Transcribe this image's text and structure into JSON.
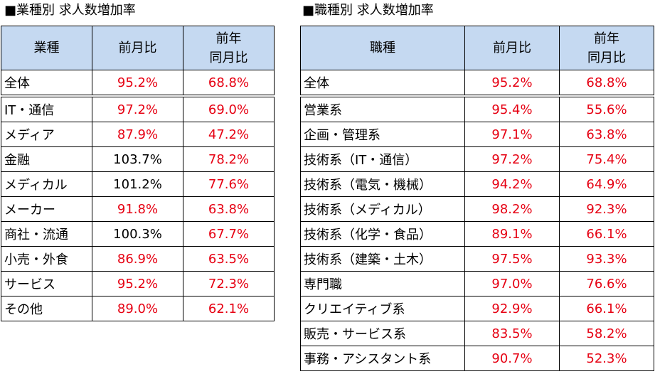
{
  "industry": {
    "title": "■業種別 求人数増加率",
    "headers": [
      "業種",
      "前月比",
      "前年\n同月比"
    ],
    "rows": [
      {
        "label": "全体",
        "mom": "95.2%",
        "yoy": "68.8%",
        "mom_color": "red",
        "yoy_color": "red"
      },
      {
        "label": "IT・通信",
        "mom": "97.2%",
        "yoy": "69.0%",
        "mom_color": "red",
        "yoy_color": "red"
      },
      {
        "label": "メディア",
        "mom": "87.9%",
        "yoy": "47.2%",
        "mom_color": "red",
        "yoy_color": "red"
      },
      {
        "label": "金融",
        "mom": "103.7%",
        "yoy": "78.2%",
        "mom_color": "black",
        "yoy_color": "red"
      },
      {
        "label": "メディカル",
        "mom": "101.2%",
        "yoy": "77.6%",
        "mom_color": "black",
        "yoy_color": "red"
      },
      {
        "label": "メーカー",
        "mom": "91.8%",
        "yoy": "63.8%",
        "mom_color": "red",
        "yoy_color": "red"
      },
      {
        "label": "商社・流通",
        "mom": "100.3%",
        "yoy": "67.7%",
        "mom_color": "black",
        "yoy_color": "red"
      },
      {
        "label": "小売・外食",
        "mom": "86.9%",
        "yoy": "63.5%",
        "mom_color": "red",
        "yoy_color": "red"
      },
      {
        "label": "サービス",
        "mom": "95.2%",
        "yoy": "72.3%",
        "mom_color": "red",
        "yoy_color": "red"
      },
      {
        "label": "その他",
        "mom": "89.0%",
        "yoy": "62.1%",
        "mom_color": "red",
        "yoy_color": "red"
      }
    ]
  },
  "job": {
    "title": "■職種別 求人数増加率",
    "headers": [
      "職種",
      "前月比",
      "前年\n同月比"
    ],
    "rows": [
      {
        "label": "全体",
        "mom": "95.2%",
        "yoy": "68.8%",
        "mom_color": "red",
        "yoy_color": "red"
      },
      {
        "label": "営業系",
        "mom": "95.4%",
        "yoy": "55.6%",
        "mom_color": "red",
        "yoy_color": "red"
      },
      {
        "label": "企画・管理系",
        "mom": "97.1%",
        "yoy": "63.8%",
        "mom_color": "red",
        "yoy_color": "red"
      },
      {
        "label": "技術系（IT・通信）",
        "mom": "97.2%",
        "yoy": "75.4%",
        "mom_color": "red",
        "yoy_color": "red"
      },
      {
        "label": "技術系（電気・機械）",
        "mom": "94.2%",
        "yoy": "64.9%",
        "mom_color": "red",
        "yoy_color": "red"
      },
      {
        "label": "技術系（メディカル）",
        "mom": "98.2%",
        "yoy": "92.3%",
        "mom_color": "red",
        "yoy_color": "red"
      },
      {
        "label": "技術系（化学・食品）",
        "mom": "89.1%",
        "yoy": "66.1%",
        "mom_color": "red",
        "yoy_color": "red"
      },
      {
        "label": "技術系（建築・土木）",
        "mom": "97.5%",
        "yoy": "93.3%",
        "mom_color": "red",
        "yoy_color": "red"
      },
      {
        "label": "専門職",
        "mom": "97.0%",
        "yoy": "76.6%",
        "mom_color": "red",
        "yoy_color": "red"
      },
      {
        "label": "クリエイティブ系",
        "mom": "92.9%",
        "yoy": "66.1%",
        "mom_color": "red",
        "yoy_color": "red"
      },
      {
        "label": "販売・サービス系",
        "mom": "83.5%",
        "yoy": "58.2%",
        "mom_color": "red",
        "yoy_color": "red"
      },
      {
        "label": "事務・アシスタント系",
        "mom": "90.7%",
        "yoy": "52.3%",
        "mom_color": "red",
        "yoy_color": "red"
      }
    ]
  },
  "colors": {
    "red": "#e60012",
    "black": "#000000",
    "header_bg": "#c5d9f1"
  }
}
